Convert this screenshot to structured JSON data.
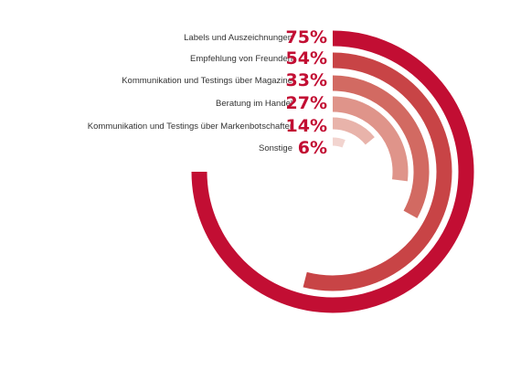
{
  "chart_data": {
    "type": "radial-bar",
    "title": "",
    "categories": [
      "Labels und Auszeichnungen",
      "Empfehlung von Freunden",
      "Kommunikation und Testings über Magazine",
      "Beratung im Handel",
      "Kommunikation und Testings über Markenbotschafter",
      "Sonstige"
    ],
    "values": [
      75,
      54,
      33,
      27,
      14,
      6
    ],
    "value_labels": [
      "75%",
      "54%",
      "33%",
      "27%",
      "14%",
      "6%"
    ],
    "unit": "%",
    "range": [
      0,
      100
    ],
    "colors": [
      "#c20e33",
      "#c84446",
      "#d26a62",
      "#df948a",
      "#e8b3aa",
      "#f2d4cf"
    ],
    "grid": false,
    "legend": "none"
  }
}
